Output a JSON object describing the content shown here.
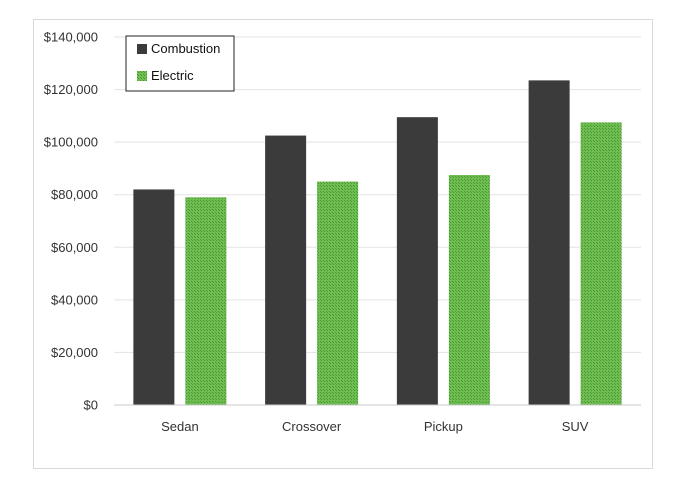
{
  "chart_data": {
    "type": "bar",
    "categories": [
      "Sedan",
      "Crossover",
      "Pickup",
      "SUV"
    ],
    "series": [
      {
        "name": "Combustion",
        "values": [
          82000,
          102500,
          109500,
          123500
        ],
        "color": "#3b3b3b"
      },
      {
        "name": "Electric",
        "values": [
          79000,
          85000,
          87500,
          107500
        ],
        "color": "#5aa83e"
      }
    ],
    "ylim": [
      0,
      140000
    ],
    "yticks": [
      "$0",
      "$20,000",
      "$40,000",
      "$60,000",
      "$80,000",
      "$100,000",
      "$120,000",
      "$140,000"
    ],
    "ytick_values": [
      0,
      20000,
      40000,
      60000,
      80000,
      100000,
      120000,
      140000
    ],
    "grid": true,
    "legend_position": "top-left",
    "title": "",
    "xlabel": "",
    "ylabel": ""
  }
}
